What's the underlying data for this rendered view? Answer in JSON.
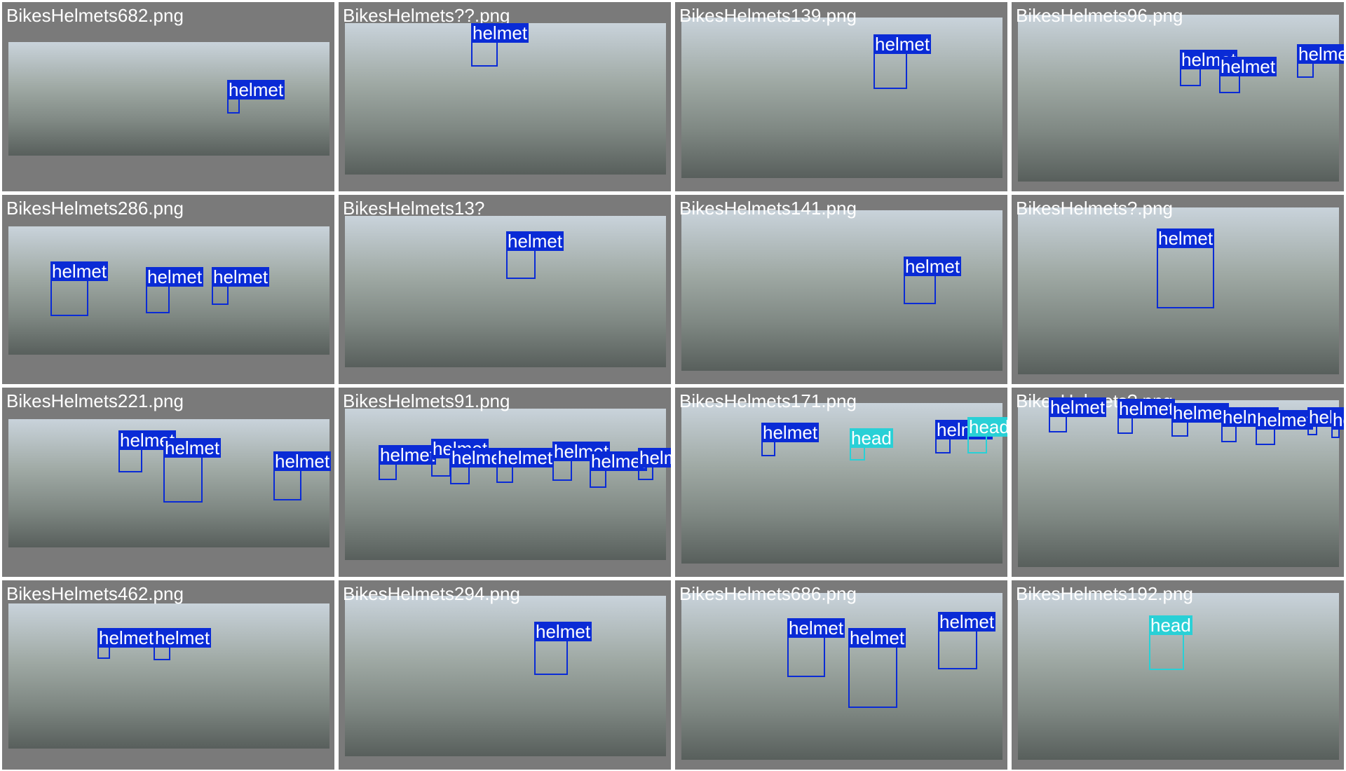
{
  "tiles": [
    {
      "filename": "BikesHelmets682.png",
      "photo": "",
      "boxes": [
        {
          "label": "helmet",
          "class": "helmet"
        }
      ]
    },
    {
      "filename": "BikesHelmets??.png",
      "photo": "",
      "boxes": [
        {
          "label": "helmet",
          "class": "helmet"
        }
      ]
    },
    {
      "filename": "BikesHelmets139.png",
      "photo": "",
      "boxes": [
        {
          "label": "helmet",
          "class": "helmet"
        }
      ]
    },
    {
      "filename": "BikesHelmets96.png",
      "photo": "",
      "boxes": [
        {
          "label": "helmet",
          "class": "helmet"
        },
        {
          "label": "helmet",
          "class": "helmet"
        },
        {
          "label": "helmet",
          "class": "helmet"
        }
      ]
    },
    {
      "filename": "BikesHelmets286.png",
      "photo": "",
      "boxes": [
        {
          "label": "helmet",
          "class": "helmet"
        },
        {
          "label": "helmet",
          "class": "helmet"
        },
        {
          "label": "helmet",
          "class": "helmet"
        }
      ]
    },
    {
      "filename": "BikesHelmets13?",
      "photo": "",
      "boxes": [
        {
          "label": "helmet",
          "class": "helmet"
        }
      ]
    },
    {
      "filename": "BikesHelmets141.png",
      "photo": "",
      "boxes": [
        {
          "label": "helmet",
          "class": "helmet"
        }
      ]
    },
    {
      "filename": "BikesHelmets?.png",
      "photo": "",
      "boxes": [
        {
          "label": "helmet",
          "class": "helmet"
        }
      ]
    },
    {
      "filename": "BikesHelmets221.png",
      "photo": "",
      "boxes": [
        {
          "label": "helmet",
          "class": "helmet"
        },
        {
          "label": "helmet",
          "class": "helmet"
        },
        {
          "label": "helmet",
          "class": "helmet"
        }
      ]
    },
    {
      "filename": "BikesHelmets91.png",
      "photo": "",
      "boxes": [
        {
          "label": "helmet",
          "class": "helmet"
        },
        {
          "label": "helmet",
          "class": "helmet"
        },
        {
          "label": "helmet",
          "class": "helmet"
        },
        {
          "label": "helmet",
          "class": "helmet"
        },
        {
          "label": "helmet",
          "class": "helmet"
        },
        {
          "label": "helmet",
          "class": "helmet"
        },
        {
          "label": "helmet",
          "class": "helmet"
        }
      ]
    },
    {
      "filename": "BikesHelmets171.png",
      "photo": "",
      "boxes": [
        {
          "label": "helmet",
          "class": "helmet"
        },
        {
          "label": "head",
          "class": "head"
        },
        {
          "label": "helmet",
          "class": "helmet"
        },
        {
          "label": "head",
          "class": "head"
        }
      ]
    },
    {
      "filename": "BikesHelmets?.png",
      "photo": "",
      "boxes": [
        {
          "label": "helmet",
          "class": "helmet"
        },
        {
          "label": "helmet",
          "class": "helmet"
        },
        {
          "label": "helmet",
          "class": "helmet"
        },
        {
          "label": "helmet",
          "class": "helmet"
        },
        {
          "label": "helmet",
          "class": "helmet"
        },
        {
          "label": "helmet",
          "class": "helmet"
        },
        {
          "label": "helmet",
          "class": "helmet"
        }
      ]
    },
    {
      "filename": "BikesHelmets462.png",
      "photo": "",
      "boxes": [
        {
          "label": "helmet",
          "class": "helmet"
        },
        {
          "label": "helmet",
          "class": "helmet"
        }
      ]
    },
    {
      "filename": "BikesHelmets294.png",
      "photo": "",
      "boxes": [
        {
          "label": "helmet",
          "class": "helmet"
        }
      ]
    },
    {
      "filename": "BikesHelmets686.png",
      "photo": "",
      "boxes": [
        {
          "label": "helmet",
          "class": "helmet"
        },
        {
          "label": "helmet",
          "class": "helmet"
        },
        {
          "label": "helmet",
          "class": "helmet"
        }
      ]
    },
    {
      "filename": "BikesHelmets192.png",
      "photo": "",
      "boxes": [
        {
          "label": "head",
          "class": "head"
        }
      ]
    }
  ],
  "colors": {
    "helmet": "#0a2bd6",
    "head": "#29d0d6",
    "tile_background": "#7a7a7a"
  }
}
